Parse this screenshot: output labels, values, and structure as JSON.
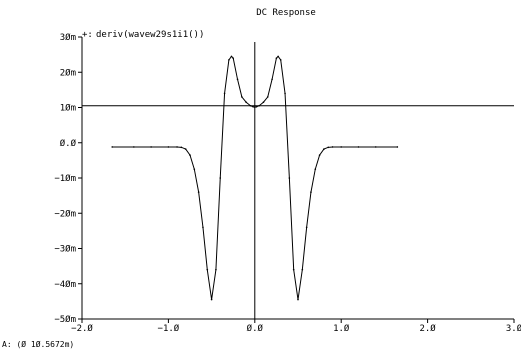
{
  "chart_data": {
    "type": "line",
    "title": "DC Response",
    "xlabel": "",
    "ylabel": "",
    "xlim": [
      -2.0,
      3.0
    ],
    "ylim": [
      -0.05,
      0.03
    ],
    "x_ticks": [
      -2.0,
      -1.0,
      0.0,
      1.0,
      2.0,
      3.0
    ],
    "x_tick_labels": [
      "−2.Ø",
      "−1.Ø",
      "Ø.Ø",
      "1.Ø",
      "2.Ø",
      "3.Ø"
    ],
    "y_ticks": [
      0.03,
      0.02,
      0.01,
      0.0,
      -0.01,
      -0.02,
      -0.03,
      -0.04,
      -0.05
    ],
    "y_tick_labels": [
      "3Øm",
      "2Øm",
      "1Øm",
      "Ø.Ø",
      "−1Øm",
      "−2Øm",
      "−3Øm",
      "−4Øm",
      "−5Øm"
    ],
    "grid": false,
    "legend_position": "top-left",
    "series": [
      {
        "name": "deriv(wavew29s1i1())",
        "color": "#000000",
        "x": [
          -1.65,
          -1.4,
          -1.2,
          -1.0,
          -0.9,
          -0.85,
          -0.8,
          -0.75,
          -0.7,
          -0.65,
          -0.6,
          -0.55,
          -0.5,
          -0.45,
          -0.4,
          -0.35,
          -0.3,
          -0.27,
          -0.25,
          -0.2,
          -0.15,
          -0.1,
          -0.05,
          -0.02,
          0.0,
          0.02,
          0.05,
          0.1,
          0.15,
          0.2,
          0.25,
          0.27,
          0.3,
          0.35,
          0.4,
          0.45,
          0.5,
          0.55,
          0.6,
          0.65,
          0.7,
          0.75,
          0.8,
          0.85,
          0.9,
          1.0,
          1.2,
          1.4,
          1.65
        ],
        "y": [
          -0.0012,
          -0.0012,
          -0.0012,
          -0.0012,
          -0.0012,
          -0.0013,
          -0.0018,
          -0.0035,
          -0.0075,
          -0.014,
          -0.024,
          -0.036,
          -0.0445,
          -0.036,
          -0.01,
          0.014,
          0.0235,
          0.0245,
          0.024,
          0.018,
          0.013,
          0.0115,
          0.0105,
          0.0102,
          0.0101,
          0.0102,
          0.0105,
          0.0115,
          0.013,
          0.018,
          0.024,
          0.0245,
          0.0235,
          0.014,
          -0.01,
          -0.036,
          -0.0445,
          -0.036,
          -0.024,
          -0.014,
          -0.0075,
          -0.0035,
          -0.0018,
          -0.0013,
          -0.0012,
          -0.0012,
          -0.0012,
          -0.0012,
          -0.0012
        ]
      }
    ],
    "annotations": {
      "horizontal_marker_y": 0.0105,
      "vertical_marker_x": 0.0,
      "legend_marker": "+:",
      "cursor_readout": "A: (Ø 1Ø.5672m)"
    }
  }
}
